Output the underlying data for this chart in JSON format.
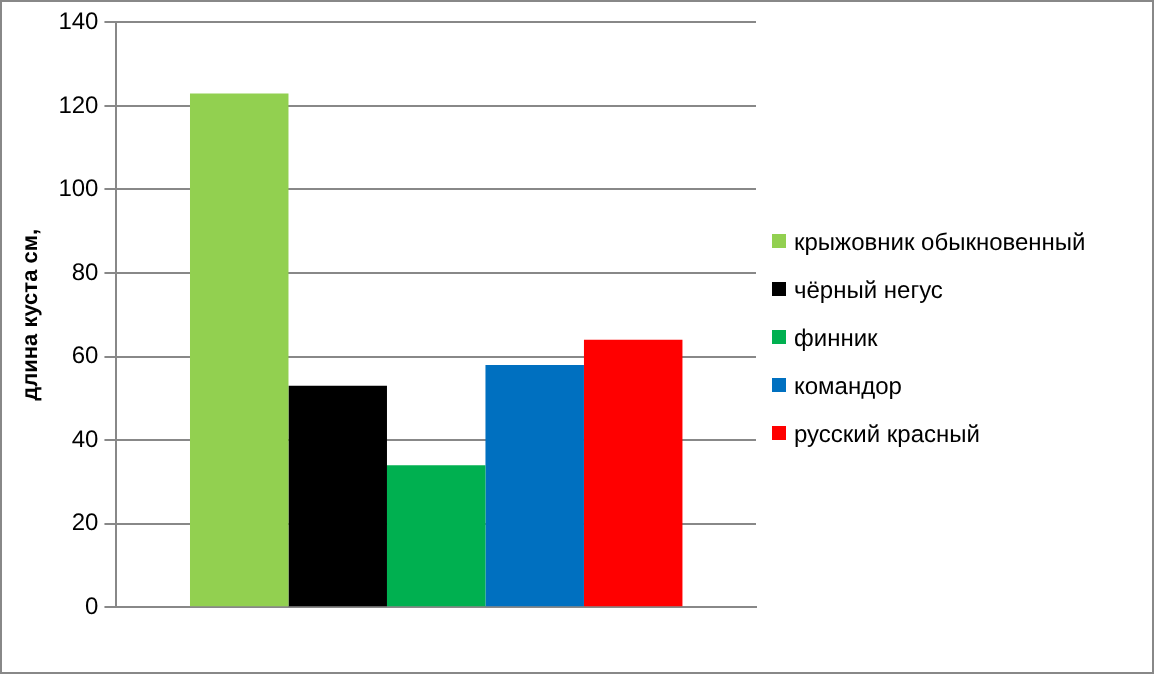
{
  "chart_data": {
    "type": "bar",
    "ylabel": "длина куста см,",
    "categories": [
      null
    ],
    "series": [
      {
        "name": "крыжовник обыкновенный",
        "color": "#92d050",
        "values": [
          123
        ]
      },
      {
        "name": "чёрный негус",
        "color": "#000000",
        "values": [
          53
        ]
      },
      {
        "name": "финник",
        "color": "#00b050",
        "values": [
          34
        ]
      },
      {
        "name": "командор",
        "color": "#0070c0",
        "values": [
          58
        ]
      },
      {
        "name": "русский красный",
        "color": "#ff0000",
        "values": [
          64
        ]
      }
    ],
    "ylim": [
      0,
      140
    ],
    "yticks": [
      0,
      20,
      40,
      60,
      80,
      100,
      120,
      140
    ],
    "grid": "y",
    "legend": "right"
  }
}
